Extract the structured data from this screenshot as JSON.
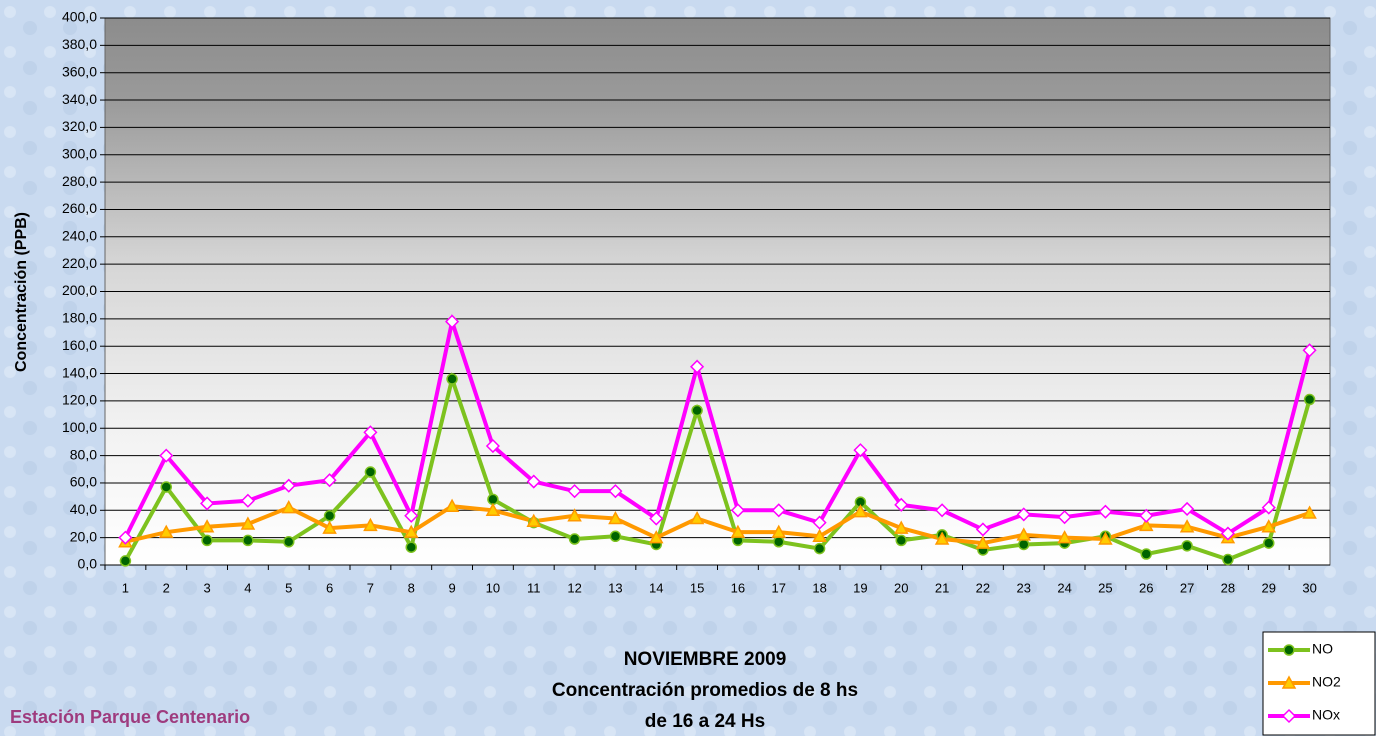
{
  "chart_data": {
    "type": "line",
    "title": "NOVIEMBRE 2009",
    "subtitle": [
      "Concentración promedios de 8 hs",
      "de 16 a 24 Hs"
    ],
    "annotation": "Estación Parque Centenario",
    "y_label": "Concentración  (PPB)",
    "categories": [
      "1",
      "2",
      "3",
      "4",
      "5",
      "6",
      "7",
      "8",
      "9",
      "10",
      "11",
      "12",
      "13",
      "14",
      "15",
      "16",
      "17",
      "18",
      "19",
      "20",
      "21",
      "22",
      "23",
      "24",
      "25",
      "26",
      "27",
      "28",
      "29",
      "30"
    ],
    "series": [
      {
        "name": "NO",
        "color": "#7dc21e",
        "marker": "circle",
        "values": [
          3,
          57,
          18,
          18,
          17,
          36,
          68,
          13,
          136,
          48,
          31,
          19,
          21,
          15,
          113,
          18,
          17,
          12,
          46,
          18,
          22,
          11,
          15,
          16,
          21,
          8,
          14,
          4,
          16,
          121
        ]
      },
      {
        "name": "NO2",
        "color": "#ff9900",
        "marker": "triangle",
        "values": [
          17,
          24,
          28,
          30,
          42,
          27,
          29,
          24,
          43,
          40,
          32,
          36,
          34,
          20,
          34,
          24,
          24,
          21,
          39,
          27,
          19,
          16,
          22,
          20,
          19,
          29,
          28,
          20,
          28,
          38
        ]
      },
      {
        "name": "NOx",
        "color": "#ff00ff",
        "marker": "diamond",
        "values": [
          20,
          80,
          45,
          47,
          58,
          62,
          97,
          36,
          178,
          87,
          61,
          54,
          54,
          34,
          145,
          40,
          40,
          31,
          84,
          44,
          40,
          26,
          37,
          35,
          39,
          36,
          41,
          23,
          42,
          157
        ]
      }
    ],
    "ylim": [
      0,
      400
    ],
    "yticks": [
      {
        "value": 0,
        "label": "0,0"
      },
      {
        "value": 20,
        "label": "20,0"
      },
      {
        "value": 40,
        "label": "40,0"
      },
      {
        "value": 60,
        "label": "60,0"
      },
      {
        "value": 80,
        "label": "80,0"
      },
      {
        "value": 100,
        "label": "100,0"
      },
      {
        "value": 120,
        "label": "120,0"
      },
      {
        "value": 140,
        "label": "140,0"
      },
      {
        "value": 160,
        "label": "160,0"
      },
      {
        "value": 180,
        "label": "180,0"
      },
      {
        "value": 200,
        "label": "200,0"
      },
      {
        "value": 220,
        "label": "220,0"
      },
      {
        "value": 240,
        "label": "240,0"
      },
      {
        "value": 260,
        "label": "260,0"
      },
      {
        "value": 280,
        "label": "280,0"
      },
      {
        "value": 300,
        "label": "300,0"
      },
      {
        "value": 320,
        "label": "320,0"
      },
      {
        "value": 340,
        "label": "340,0"
      },
      {
        "value": 360,
        "label": "360,0"
      },
      {
        "value": 380,
        "label": "380,0"
      },
      {
        "value": 400,
        "label": "400,0"
      }
    ],
    "grid": true
  }
}
